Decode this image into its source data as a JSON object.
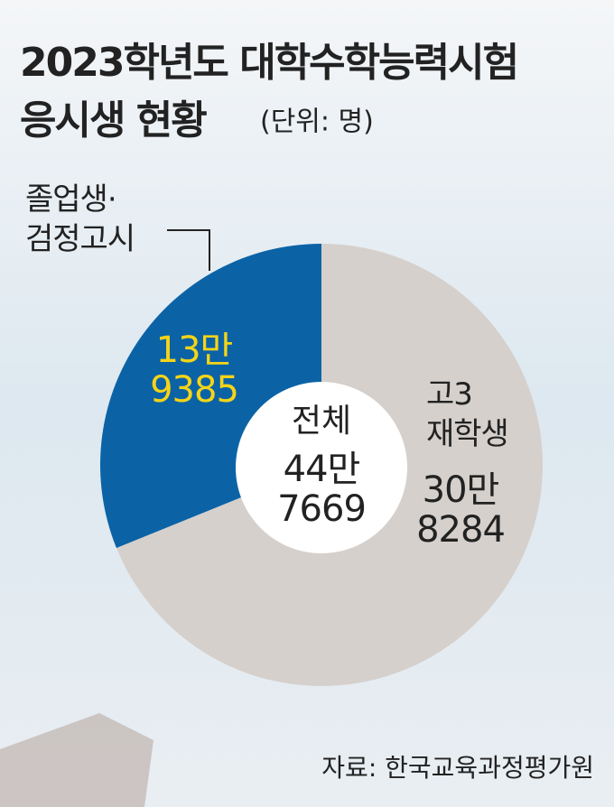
{
  "chart_data": {
    "type": "donut",
    "title": "2023학년도 대학수학능력시험\n응시생 현황",
    "subtitle": "(단위: 명)",
    "categories": [
      "졸업생·\n검정고시",
      "고3\n재학생"
    ],
    "values": [
      139385,
      308284
    ],
    "value_labels": [
      "13만\n9385",
      "30만\n8284"
    ],
    "colors": [
      "#0b63a6",
      "#d5d0cc"
    ],
    "value_label_colors": [
      "#f5d418",
      "#222222"
    ],
    "total_label": "전체",
    "total": 447669,
    "total_value_label": "44만\n7669",
    "source": "자료: 한국교육과정평가원"
  }
}
